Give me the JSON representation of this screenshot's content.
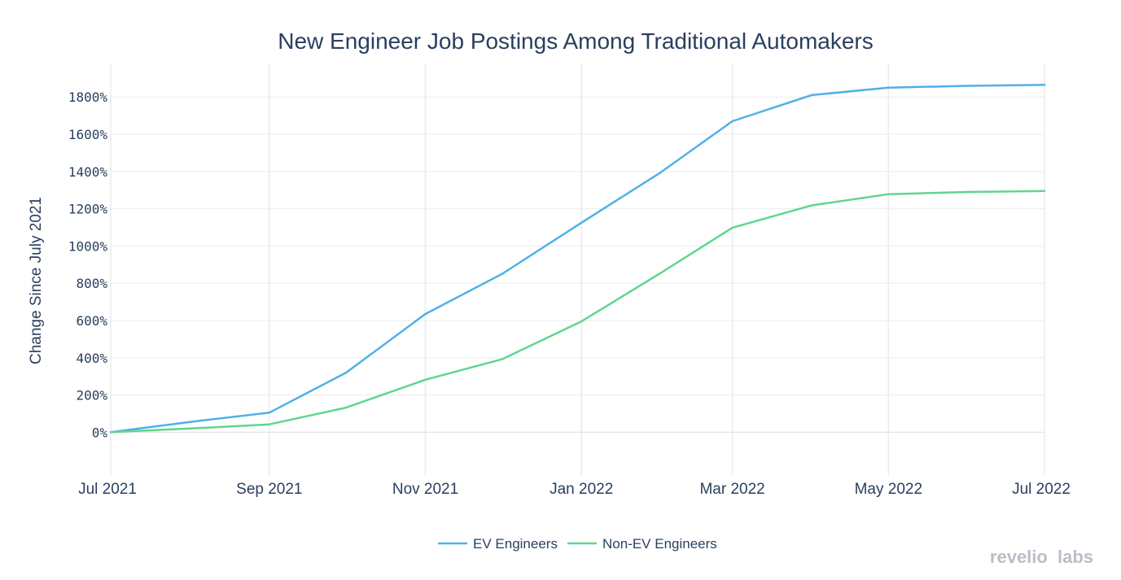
{
  "chart_data": {
    "type": "line",
    "title": "New Engineer Job Postings Among Traditional Automakers",
    "ylabel": "Change Since July 2021",
    "xlabel": "",
    "x": [
      "2021-07",
      "2021-08",
      "2021-09",
      "2021-10",
      "2021-11",
      "2021-12",
      "2022-01",
      "2022-02",
      "2022-03",
      "2022-04",
      "2022-05",
      "2022-06",
      "2022-07"
    ],
    "x_tick_labels": [
      "Jul 2021",
      "Sep 2021",
      "Nov 2021",
      "Jan 2022",
      "Mar 2022",
      "May 2022",
      "Jul 2022"
    ],
    "x_tick_values": [
      "2021-07",
      "2021-09",
      "2021-11",
      "2022-01",
      "2022-03",
      "2022-05",
      "2022-07"
    ],
    "y_tick_values": [
      0,
      200,
      400,
      600,
      800,
      1000,
      1200,
      1400,
      1600,
      1800
    ],
    "y_tick_labels": [
      "0%",
      "200%",
      "400%",
      "600%",
      "800%",
      "1000%",
      "1200%",
      "1400%",
      "1600%",
      "1800%"
    ],
    "ylim": [
      -230,
      1980
    ],
    "grid": true,
    "legend_position": "bottom-center",
    "series": [
      {
        "name": "EV Engineers",
        "color": "#4fb0e8",
        "values": [
          0,
          55,
          105,
          320,
          635,
          850,
          1125,
          1395,
          1670,
          1810,
          1850,
          1860,
          1865
        ]
      },
      {
        "name": "Non-EV Engineers",
        "color": "#5fd68f",
        "values": [
          0,
          20,
          42,
          132,
          282,
          392,
          595,
          855,
          1098,
          1218,
          1278,
          1290,
          1295
        ]
      }
    ]
  },
  "watermark": {
    "text_a": "revelio",
    "text_b": "labs"
  }
}
